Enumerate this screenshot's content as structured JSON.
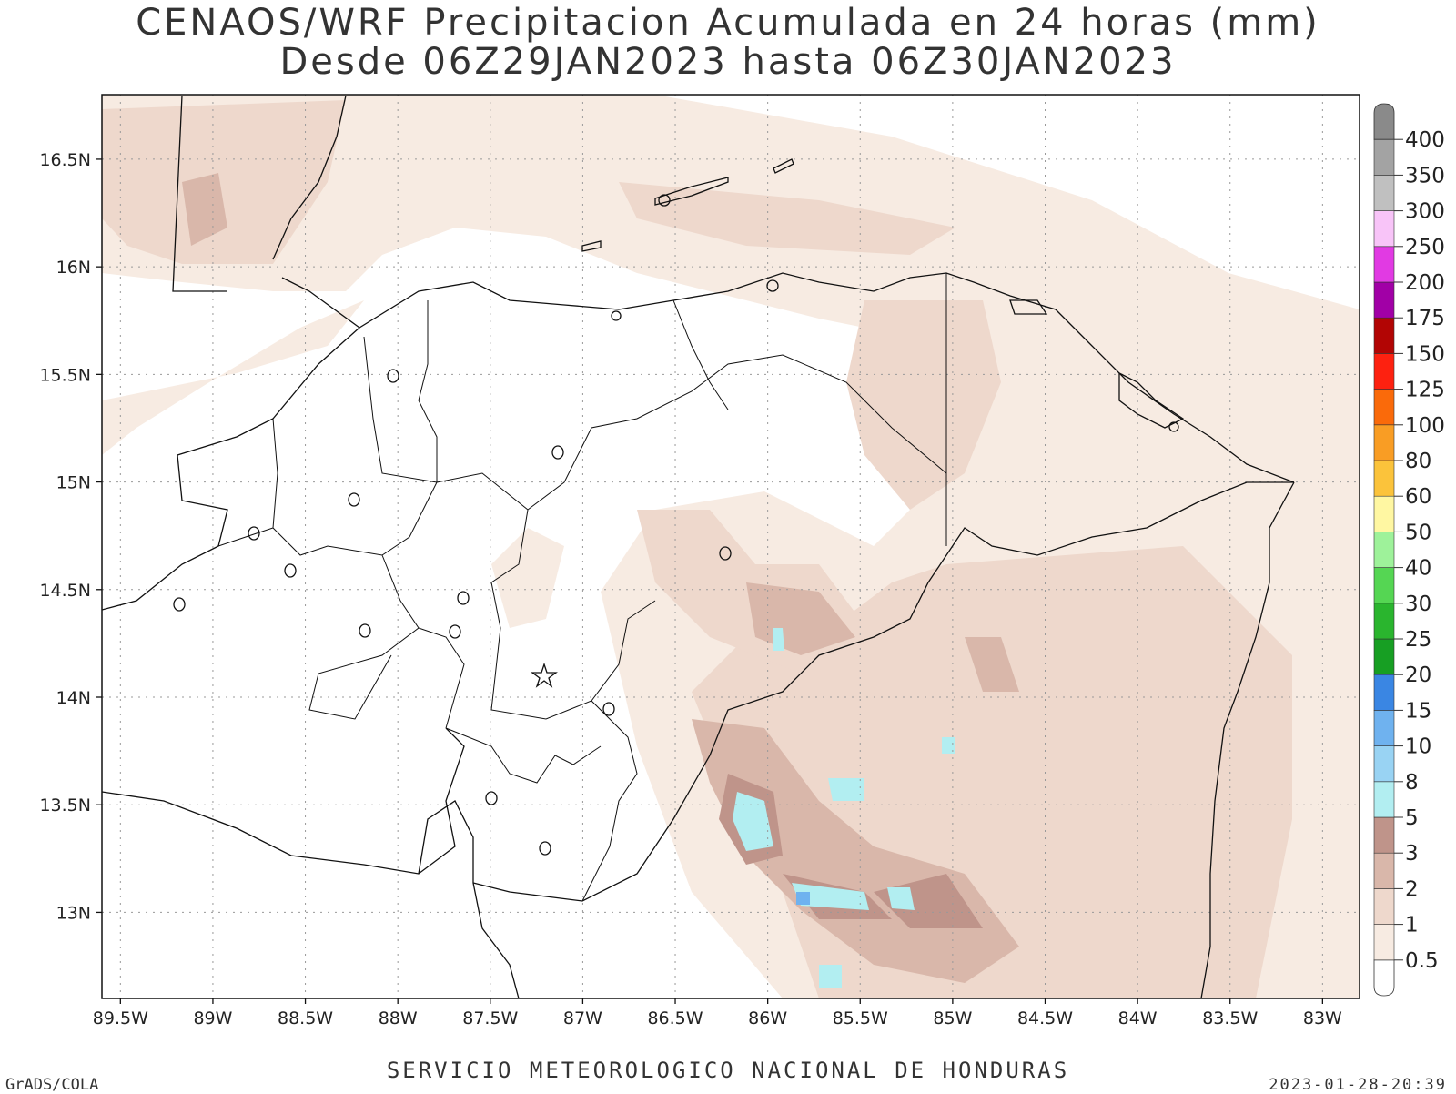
{
  "title_line1": "CENAOS/WRF Precipitacion Acumulada en 24 horas (mm)",
  "title_line2": "Desde 06Z29JAN2023 hasta 06Z30JAN2023",
  "footer_center": "SERVICIO METEOROLOGICO NACIONAL DE HONDURAS",
  "footer_left": "GrADS/COLA",
  "footer_right": "2023-01-28-20:39",
  "lat_labels": [
    "16.5N",
    "16N",
    "15.5N",
    "15N",
    "14.5N",
    "14N",
    "13.5N",
    "13N"
  ],
  "lon_labels": [
    "89.5W",
    "89W",
    "88.5W",
    "88W",
    "87.5W",
    "87W",
    "86.5W",
    "86W",
    "85.5W",
    "85W",
    "84.5W",
    "84W",
    "83.5W",
    "83W"
  ],
  "colorbar": {
    "labels": [
      "0.5",
      "1",
      "2",
      "3",
      "5",
      "8",
      "10",
      "15",
      "20",
      "25",
      "30",
      "40",
      "50",
      "60",
      "80",
      "100",
      "125",
      "150",
      "175",
      "200",
      "250",
      "300",
      "350",
      "400"
    ],
    "colors": [
      "#ffffff",
      "#f7ebe2",
      "#eed8cc",
      "#d9b7aa",
      "#bf948a",
      "#b2eef1",
      "#99d3f3",
      "#6fb2ef",
      "#3a86e3",
      "#179f23",
      "#2ab52e",
      "#55d653",
      "#9ef29a",
      "#fff7a2",
      "#fbc33b",
      "#f99d24",
      "#fa6a0a",
      "#fd2110",
      "#b20504",
      "#a100a6",
      "#e13ae3",
      "#f8c4f8",
      "#c0c0c0",
      "#a3a3a3",
      "#8a8a8a"
    ]
  },
  "map_view": {
    "lon_min": -89.6,
    "lon_max": -82.8,
    "lat_min": 12.6,
    "lat_max": 16.8
  }
}
